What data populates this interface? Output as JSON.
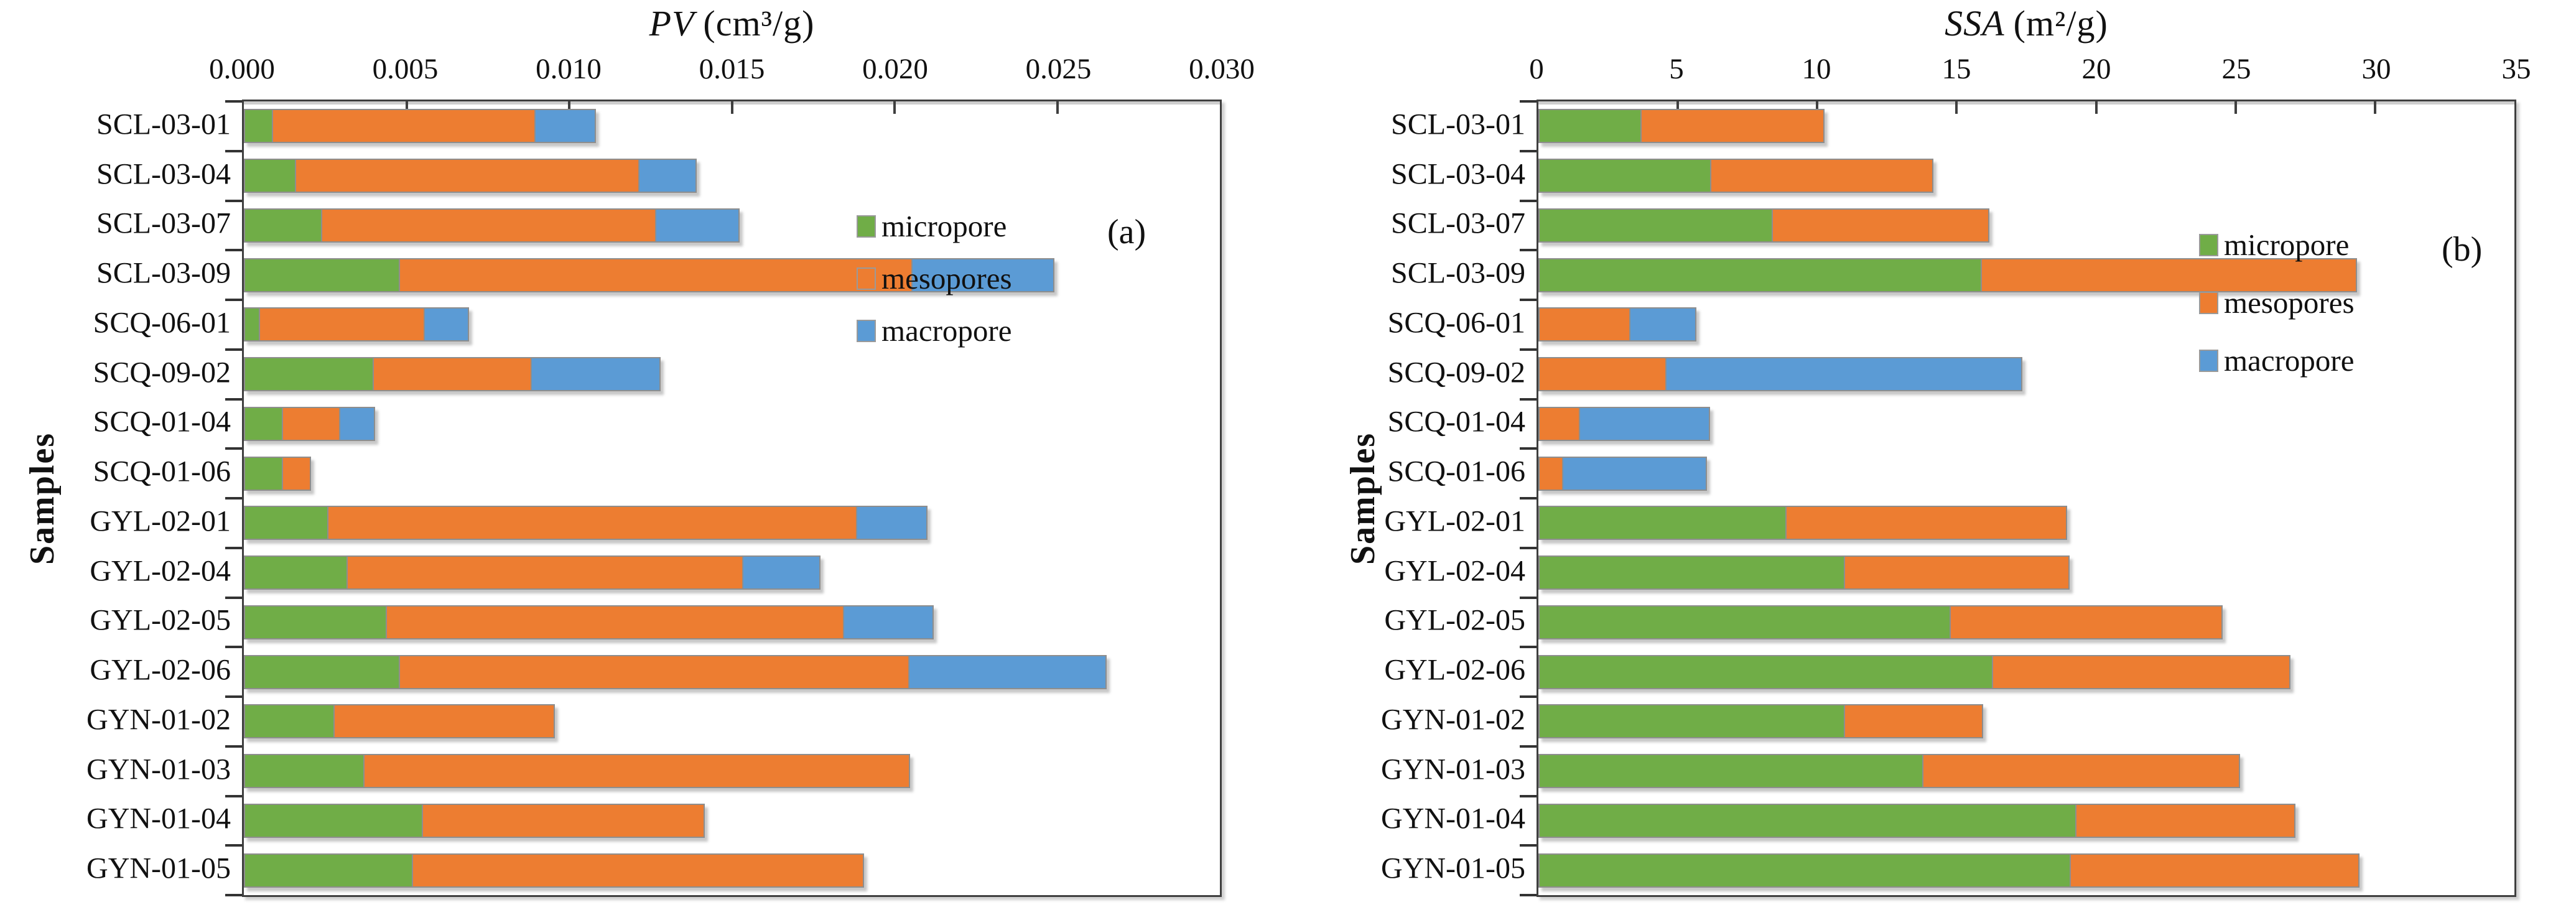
{
  "page": {
    "background": "#ffffff"
  },
  "colors": {
    "micropore": "#70AD47",
    "mesopores": "#ED7D31",
    "macropore": "#5B9BD5",
    "bar_border": "#8e8e8e",
    "frame": "#3f3f3f"
  },
  "chart_data": [
    {
      "type": "bar",
      "orientation": "horizontal",
      "stacked": true,
      "panel_label": "(a)",
      "title": "PV (cm³/g)",
      "title_main": "PV",
      "title_units": "(cm³/g)",
      "ylabel": "Samples",
      "grid": false,
      "legend_position": "inside-top-right",
      "axis": {
        "min": 0,
        "max": 0.03
      },
      "x_ticks": [
        "0.000",
        "0.005",
        "0.010",
        "0.015",
        "0.020",
        "0.025",
        "0.030"
      ],
      "categories": [
        "SCL-03-01",
        "SCL-03-04",
        "SCL-03-07",
        "SCL-03-09",
        "SCQ-06-01",
        "SCQ-09-02",
        "SCQ-01-04",
        "SCQ-01-06",
        "GYL-02-01",
        "GYL-02-04",
        "GYL-02-05",
        "GYL-02-06",
        "GYN-01-02",
        "GYN-01-03",
        "GYN-01-04",
        "GYN-01-05"
      ],
      "series": [
        {
          "name": "micropore",
          "color": "#70AD47",
          "values": [
            0.0009,
            0.0016,
            0.0024,
            0.0048,
            0.0005,
            0.004,
            0.0012,
            0.0012,
            0.0026,
            0.0032,
            0.0044,
            0.0048,
            0.0028,
            0.0037,
            0.0055,
            0.0052
          ]
        },
        {
          "name": "mesopores",
          "color": "#ED7D31",
          "values": [
            0.0081,
            0.0106,
            0.0103,
            0.0158,
            0.0051,
            0.0049,
            0.0018,
            0.0009,
            0.0163,
            0.0122,
            0.0141,
            0.0157,
            0.0068,
            0.0168,
            0.0087,
            0.0139
          ]
        },
        {
          "name": "macropore",
          "color": "#5B9BD5",
          "values": [
            0.0019,
            0.0018,
            0.0026,
            0.0044,
            0.0014,
            0.004,
            0.0011,
            0,
            0.0022,
            0.0024,
            0.0028,
            0.0061,
            0,
            0,
            0,
            0
          ]
        }
      ]
    },
    {
      "type": "bar",
      "orientation": "horizontal",
      "stacked": true,
      "panel_label": "(b)",
      "title": "SSA (m²/g)",
      "title_main": "SSA",
      "title_units": "(m²/g)",
      "ylabel": "Samples",
      "grid": false,
      "legend_position": "inside-top-right",
      "axis": {
        "min": 0,
        "max": 35
      },
      "x_ticks": [
        "0",
        "5",
        "10",
        "15",
        "20",
        "25",
        "30",
        "35"
      ],
      "categories": [
        "SCL-03-01",
        "SCL-03-04",
        "SCL-03-07",
        "SCL-03-09",
        "SCQ-06-01",
        "SCQ-09-02",
        "SCQ-01-04",
        "SCQ-01-06",
        "GYL-02-01",
        "GYL-02-04",
        "GYL-02-05",
        "GYL-02-06",
        "GYN-01-02",
        "GYN-01-03",
        "GYN-01-04",
        "GYN-01-05"
      ],
      "series": [
        {
          "name": "micropore",
          "color": "#70AD47",
          "values": [
            3.7,
            6.2,
            8.4,
            15.9,
            0,
            0,
            0,
            0,
            8.9,
            11.0,
            14.8,
            16.3,
            11.0,
            13.8,
            19.3,
            19.1
          ]
        },
        {
          "name": "mesopores",
          "color": "#ED7D31",
          "values": [
            6.6,
            8.0,
            7.8,
            13.5,
            3.3,
            4.6,
            1.5,
            0.9,
            10.1,
            8.1,
            9.8,
            10.7,
            5.0,
            11.4,
            7.9,
            10.4
          ]
        },
        {
          "name": "macropore",
          "color": "#5B9BD5",
          "values": [
            0,
            0,
            0,
            0,
            2.4,
            12.8,
            4.7,
            5.2,
            0,
            0,
            0,
            0,
            0,
            0,
            0,
            0
          ]
        }
      ]
    }
  ]
}
